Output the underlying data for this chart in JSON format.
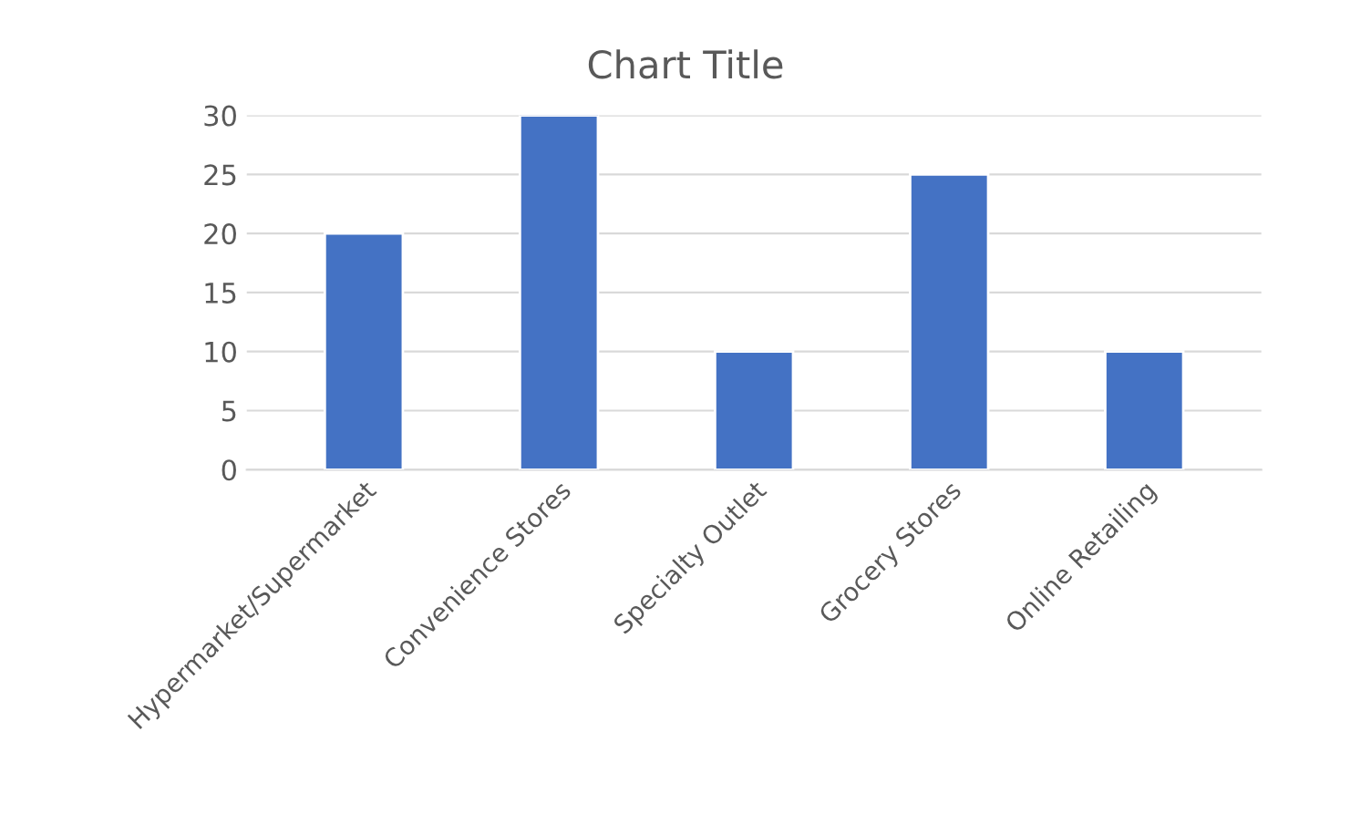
{
  "chart_data": {
    "type": "bar",
    "title": "Chart Title",
    "categories": [
      "Hypermarket/Supermarket",
      "Convenience Stores",
      "Specialty Outlet",
      "Grocery Stores",
      "Online Retailing"
    ],
    "values": [
      20,
      30,
      10,
      25,
      10
    ],
    "color": "#4472c4",
    "ylim": [
      0,
      30
    ],
    "yticks": [
      0,
      5,
      10,
      15,
      20,
      25,
      30
    ],
    "grid": "y",
    "legend": false
  }
}
